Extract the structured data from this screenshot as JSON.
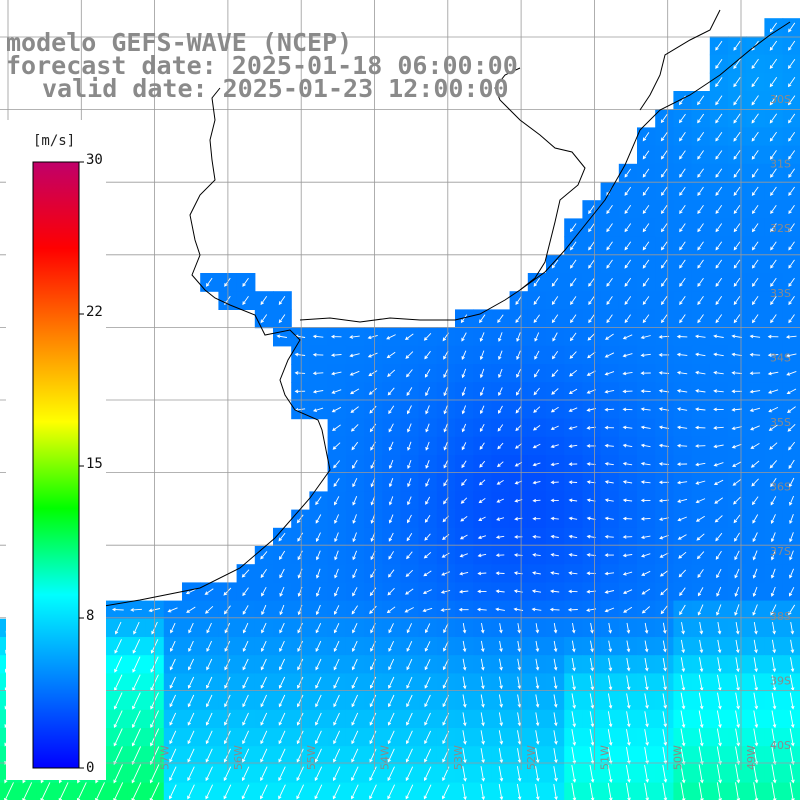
{
  "title": {
    "model": "modelo GEFS-WAVE (NCEP)",
    "forecast": "forecast date: 2025-01-18 06:00:00",
    "valid": "valid date: 2025-01-23 12:00:00"
  },
  "colorbar": {
    "units": "[m/s]",
    "ticks": [
      "30",
      "22",
      "15",
      "8",
      "0"
    ],
    "tick_values": [
      30,
      22,
      15,
      8,
      0
    ],
    "min": 0,
    "max": 30,
    "colors": [
      "#0000ff",
      "#0080ff",
      "#00ffff",
      "#00ff00",
      "#ffff00",
      "#ff8000",
      "#ff0000",
      "#c0006a"
    ]
  },
  "lat_labels": [
    "30S",
    "31S",
    "32S",
    "33S",
    "34S",
    "35S",
    "36S",
    "37S",
    "38S",
    "39S",
    "40S",
    "41S"
  ],
  "lon_labels": [
    "59W",
    "58W",
    "57W",
    "56W",
    "55W",
    "54W",
    "53W",
    "52W",
    "51W",
    "50W",
    "49W"
  ],
  "colors": {
    "land": "#ffffff",
    "grid": "#9a9a9a",
    "title": "#8a8a8a",
    "arrows": "#ffffff"
  }
}
